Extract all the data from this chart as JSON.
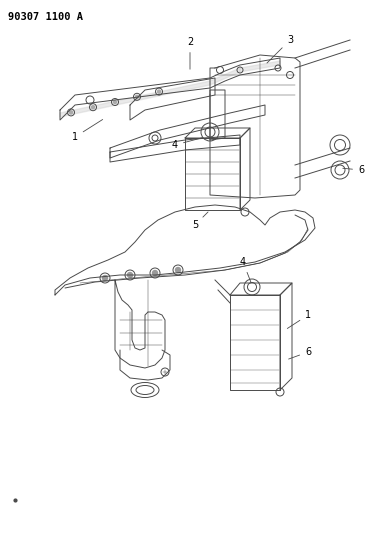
{
  "title": "90307 1100 A",
  "background_color": "#ffffff",
  "line_color": "#4a4a4a",
  "text_color": "#000000",
  "fig_width": 3.86,
  "fig_height": 5.33,
  "dpi": 100,
  "title_fontsize": 7.5,
  "label_fontsize": 7.0,
  "lw": 0.7
}
